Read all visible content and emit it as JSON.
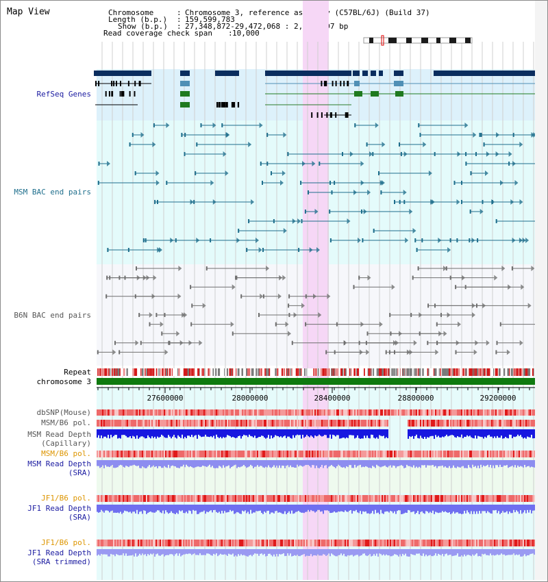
{
  "title": "Map View",
  "header": {
    "chromosome_label": "Chromosome",
    "chromosome_value": "Chromosome 3, reference assembly (C57BL/6J) (Build 37)",
    "length_label": "Length (b.p.)",
    "length_value": "159,599,783",
    "show_label": "Show (b.p.)",
    "show_value": "27,348,872-29,472,068 : 2,123,197 bp",
    "coverage_label": "Read coverage check span",
    "coverage_value": "10,000"
  },
  "tracks": {
    "refseq": "RefSeq Genes",
    "msm_bac": "MSM BAC end pairs",
    "b6n_bac": "B6N BAC end pairs",
    "repeat": "Repeat",
    "chromosome": "chromosome 3",
    "dbsnp": "dbSNP(Mouse)",
    "msm_b6_pol_1": "MSM/B6 pol.",
    "msm_read_depth_cap_1": "MSM Read Depth",
    "msm_read_depth_cap_2": "(Capillary)",
    "msm_b6_pol_2": "MSM/B6 pol.",
    "msm_read_depth_sra_1": "MSM Read Depth",
    "msm_read_depth_sra_2": "(SRA)",
    "jf1_b6_pol_1": "JF1/B6 pol.",
    "jf1_read_depth_sra_1": "JF1 Read Depth",
    "jf1_read_depth_sra_2": "(SRA)",
    "jf1_b6_pol_2": "JF1/B6 pol.",
    "jf1_read_depth_trim_1": "JF1 Read Depth",
    "jf1_read_depth_trim_2": "(SRA trimmed)"
  },
  "axis": {
    "ticks": [
      "27600000",
      "28000000",
      "28400000",
      "28800000",
      "29200000"
    ]
  },
  "colors": {
    "refseq_bg": "#ddf1fb",
    "msm_bg": "#e4fbfb",
    "b6n_bg": "#f6f7fb",
    "highlight": "#f6d7f6",
    "gene_navy": "#0a2d5e",
    "gene_steel": "#4f8fb5",
    "gene_green": "#1f7a1f",
    "msm_pair": "#1e6e8c",
    "b6n_pair": "#6f6f6f",
    "chrom_bar": "#0f7a0f",
    "label_navy": "#1a1aa0",
    "label_teal": "#1e6e8c",
    "label_grey": "#555555",
    "label_orange": "#dd9500"
  }
}
